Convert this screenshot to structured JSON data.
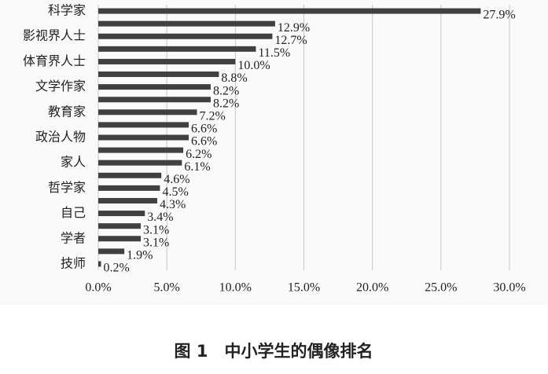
{
  "chart_data": {
    "type": "barh",
    "caption": "图 1　中小学生的偶像排名",
    "categories": [
      "科学家",
      null,
      "影视界人士",
      null,
      "体育界人士",
      null,
      "文学作家",
      null,
      "教育家",
      null,
      "政治人物",
      null,
      "家人",
      null,
      "哲学家",
      null,
      "自己",
      null,
      "学者",
      null,
      "技师"
    ],
    "values": [
      27.9,
      12.9,
      12.7,
      11.5,
      10.0,
      8.8,
      8.2,
      8.2,
      7.2,
      6.6,
      6.6,
      6.2,
      6.1,
      4.6,
      4.5,
      4.3,
      3.4,
      3.1,
      3.1,
      1.9,
      0.2
    ],
    "value_labels": [
      "27.9%",
      "12.9%",
      "12.7%",
      "11.5%",
      "10.0%",
      "8.8%",
      "8.2%",
      "8.2%",
      "7.2%",
      "6.6%",
      "6.6%",
      "6.2%",
      "6.1%",
      "4.6%",
      "4.5%",
      "4.3%",
      "3.4%",
      "3.1%",
      "3.1%",
      "1.9%",
      "0.2%"
    ],
    "color": "#404040",
    "xlim": [
      0,
      30
    ],
    "xticks": [
      {
        "value": 0,
        "label": "0.0%"
      },
      {
        "value": 5,
        "label": "5.0%"
      },
      {
        "value": 10,
        "label": "10.0%"
      },
      {
        "value": 15,
        "label": "15.0%"
      },
      {
        "value": 20,
        "label": "20.0%"
      },
      {
        "value": 25,
        "label": "25.0%"
      },
      {
        "value": 30,
        "label": "30.0%"
      }
    ],
    "grid": true
  }
}
